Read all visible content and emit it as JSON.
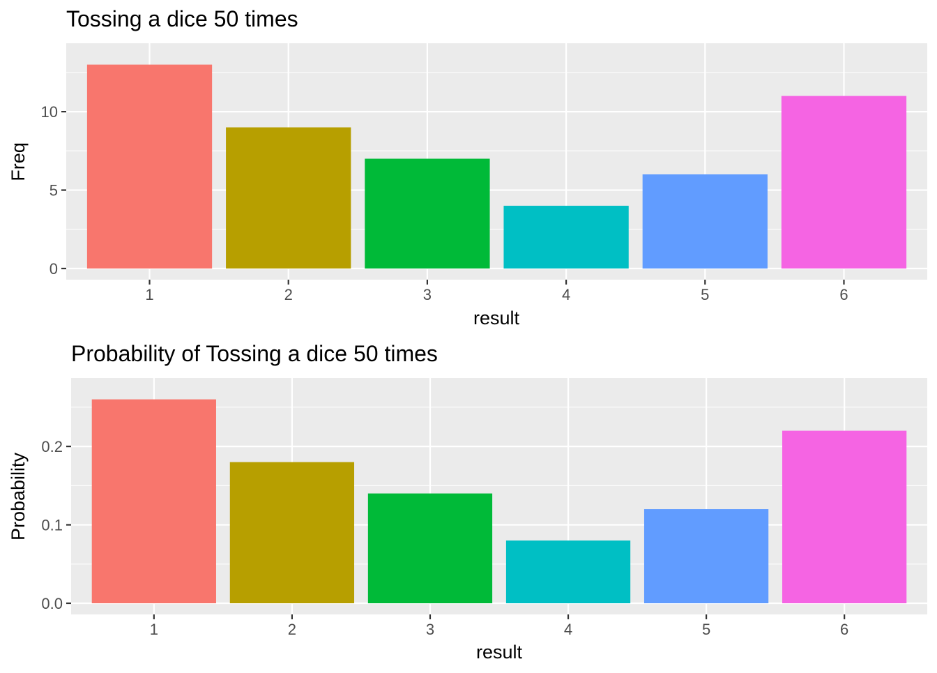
{
  "chart_data": [
    {
      "type": "bar",
      "title": "Tossing a dice 50 times",
      "xlabel": "result",
      "ylabel": "Freq",
      "categories": [
        "1",
        "2",
        "3",
        "4",
        "5",
        "6"
      ],
      "values": [
        13,
        9,
        7,
        4,
        6,
        11
      ],
      "colors": [
        "#F8766D",
        "#B79F00",
        "#00BA38",
        "#00BFC4",
        "#619CFF",
        "#F564E3"
      ],
      "ylim": [
        0,
        13.65
      ],
      "yticks": [
        0,
        5,
        10
      ],
      "ytick_labels": [
        "0",
        "5",
        "10"
      ],
      "grid": true,
      "legend": "none",
      "panel_color": "#EBEBEB",
      "grid_color": "#FFFFFF"
    },
    {
      "type": "bar",
      "title": "Probability of Tossing a dice 50 times",
      "xlabel": "result",
      "ylabel": "Probability",
      "categories": [
        "1",
        "2",
        "3",
        "4",
        "5",
        "6"
      ],
      "values": [
        0.26,
        0.18,
        0.14,
        0.08,
        0.12,
        0.22
      ],
      "colors": [
        "#F8766D",
        "#B79F00",
        "#00BA38",
        "#00BFC4",
        "#619CFF",
        "#F564E3"
      ],
      "ylim": [
        0,
        0.273
      ],
      "yticks": [
        0,
        0.1,
        0.2
      ],
      "ytick_labels": [
        "0.0",
        "0.1",
        "0.2"
      ],
      "grid": true,
      "legend": "none",
      "panel_color": "#EBEBEB",
      "grid_color": "#FFFFFF"
    }
  ]
}
